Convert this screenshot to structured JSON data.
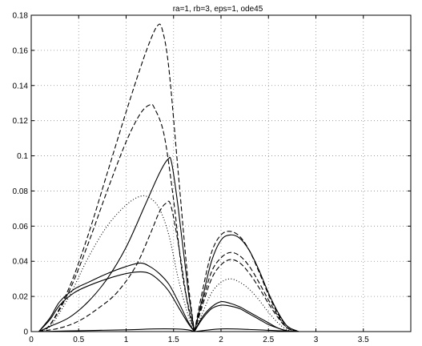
{
  "chart_data": {
    "type": "line",
    "title": "ra=1, rb=3, eps=1, ode45",
    "xlabel": "",
    "ylabel": "",
    "xlim": [
      0,
      4
    ],
    "ylim": [
      0,
      0.18
    ],
    "xticks": [
      0,
      0.5,
      1,
      1.5,
      2,
      2.5,
      3,
      3.5
    ],
    "xtick_labels": [
      "0",
      "0.5",
      "1",
      "1.5",
      "2",
      "2.5",
      "3",
      "3.5"
    ],
    "yticks": [
      0,
      0.02,
      0.04,
      0.06,
      0.08,
      0.1,
      0.12,
      0.14,
      0.16,
      0.18
    ],
    "ytick_labels": [
      "0",
      "0.02",
      "0.04",
      "0.06",
      "0.08",
      "0.1",
      "0.12",
      "0.14",
      "0.16",
      "0.18"
    ],
    "grid": true,
    "line_color": "#000000",
    "grid_color": "#8c8c8c",
    "series": [
      {
        "style": "dashed",
        "x": [
          0.08,
          0.2,
          0.4,
          0.6,
          0.8,
          1.0,
          1.15,
          1.25,
          1.33,
          1.38,
          1.45,
          1.55,
          1.65,
          1.72
        ],
        "y": [
          0,
          0.004,
          0.025,
          0.055,
          0.09,
          0.125,
          0.15,
          0.165,
          0.174,
          0.172,
          0.15,
          0.09,
          0.03,
          0
        ]
      },
      {
        "style": "dashed",
        "x": [
          0.08,
          0.2,
          0.4,
          0.6,
          0.8,
          1.0,
          1.15,
          1.25,
          1.3,
          1.4,
          1.5,
          1.6,
          1.72
        ],
        "y": [
          0,
          0.004,
          0.023,
          0.05,
          0.08,
          0.108,
          0.124,
          0.129,
          0.127,
          0.112,
          0.075,
          0.03,
          0
        ]
      },
      {
        "style": "dotted",
        "x": [
          0.08,
          0.2,
          0.4,
          0.6,
          0.8,
          1.0,
          1.15,
          1.25,
          1.35,
          1.45,
          1.55,
          1.65,
          1.72
        ],
        "y": [
          0,
          0.003,
          0.02,
          0.042,
          0.06,
          0.072,
          0.077,
          0.076,
          0.07,
          0.055,
          0.03,
          0.01,
          0
        ]
      },
      {
        "style": "dashed",
        "x": [
          0.08,
          0.3,
          0.5,
          0.7,
          0.9,
          1.1,
          1.25,
          1.35,
          1.42,
          1.47,
          1.55,
          1.65,
          1.72
        ],
        "y": [
          0,
          0.002,
          0.006,
          0.013,
          0.022,
          0.037,
          0.055,
          0.068,
          0.073,
          0.072,
          0.05,
          0.015,
          0
        ]
      },
      {
        "style": "solid",
        "x": [
          0.08,
          0.2,
          0.4,
          0.6,
          0.8,
          1.0,
          1.2,
          1.35,
          1.44,
          1.48,
          1.55,
          1.65,
          1.72
        ],
        "y": [
          0,
          0.003,
          0.008,
          0.017,
          0.03,
          0.048,
          0.072,
          0.09,
          0.098,
          0.096,
          0.07,
          0.025,
          0
        ]
      },
      {
        "style": "solid",
        "x": [
          0.08,
          0.2,
          0.3,
          0.45,
          0.6,
          0.8,
          1.0,
          1.15,
          1.25,
          1.35,
          1.45,
          1.55,
          1.65,
          1.72
        ],
        "y": [
          0,
          0.008,
          0.017,
          0.024,
          0.028,
          0.033,
          0.037,
          0.039,
          0.037,
          0.033,
          0.027,
          0.017,
          0.006,
          0
        ]
      },
      {
        "style": "solid",
        "x": [
          0.08,
          0.2,
          0.3,
          0.45,
          0.6,
          0.8,
          1.0,
          1.15,
          1.25,
          1.35,
          1.45,
          1.55,
          1.65,
          1.72
        ],
        "y": [
          0,
          0.007,
          0.015,
          0.022,
          0.026,
          0.03,
          0.033,
          0.034,
          0.033,
          0.029,
          0.023,
          0.014,
          0.005,
          0
        ]
      },
      {
        "style": "solid",
        "x": [
          0.08,
          0.5,
          1.0,
          1.3,
          1.5,
          1.65,
          1.72
        ],
        "y": [
          0,
          0.0005,
          0.001,
          0.0015,
          0.0015,
          0.001,
          0
        ]
      },
      {
        "style": "dashed",
        "x": [
          1.72,
          1.8,
          1.9,
          2.0,
          2.1,
          2.2,
          2.3,
          2.4,
          2.5,
          2.6,
          2.7,
          2.82
        ],
        "y": [
          0,
          0.022,
          0.045,
          0.055,
          0.057,
          0.054,
          0.046,
          0.034,
          0.021,
          0.01,
          0.003,
          0
        ]
      },
      {
        "style": "solid",
        "x": [
          1.72,
          1.8,
          1.9,
          2.0,
          2.1,
          2.2,
          2.3,
          2.4,
          2.5,
          2.6,
          2.7,
          2.82
        ],
        "y": [
          0,
          0.018,
          0.04,
          0.052,
          0.055,
          0.053,
          0.046,
          0.035,
          0.022,
          0.011,
          0.003,
          0
        ]
      },
      {
        "style": "dashed",
        "x": [
          1.72,
          1.8,
          1.9,
          2.0,
          2.1,
          2.2,
          2.3,
          2.4,
          2.5,
          2.6,
          2.7,
          2.82
        ],
        "y": [
          0,
          0.016,
          0.034,
          0.042,
          0.045,
          0.043,
          0.037,
          0.028,
          0.018,
          0.009,
          0.002,
          0
        ]
      },
      {
        "style": "dashed",
        "x": [
          1.72,
          1.8,
          1.9,
          2.0,
          2.1,
          2.2,
          2.3,
          2.4,
          2.5,
          2.6,
          2.7,
          2.82
        ],
        "y": [
          0,
          0.014,
          0.03,
          0.038,
          0.041,
          0.039,
          0.033,
          0.025,
          0.016,
          0.008,
          0.002,
          0
        ]
      },
      {
        "style": "dotted",
        "x": [
          1.72,
          1.8,
          1.9,
          2.0,
          2.1,
          2.2,
          2.3,
          2.4,
          2.5,
          2.6,
          2.7,
          2.82
        ],
        "y": [
          0,
          0.01,
          0.022,
          0.028,
          0.03,
          0.028,
          0.024,
          0.018,
          0.011,
          0.005,
          0.001,
          0
        ]
      },
      {
        "style": "solid",
        "x": [
          1.72,
          1.8,
          1.9,
          2.0,
          2.1,
          2.2,
          2.3,
          2.4,
          2.5,
          2.6,
          2.7,
          2.82
        ],
        "y": [
          0,
          0.008,
          0.014,
          0.017,
          0.016,
          0.014,
          0.011,
          0.008,
          0.005,
          0.002,
          0.0005,
          0
        ]
      },
      {
        "style": "solid",
        "x": [
          1.72,
          1.8,
          1.9,
          2.0,
          2.1,
          2.2,
          2.3,
          2.4,
          2.5,
          2.6,
          2.7,
          2.82
        ],
        "y": [
          0,
          0.007,
          0.013,
          0.015,
          0.0145,
          0.013,
          0.01,
          0.007,
          0.004,
          0.002,
          0.0004,
          0
        ]
      },
      {
        "style": "solid",
        "x": [
          1.72,
          2.0,
          2.3,
          2.6,
          2.82
        ],
        "y": [
          0,
          0.0015,
          0.0012,
          0.0005,
          0
        ]
      },
      {
        "style": "solid",
        "x": [
          2.82,
          3.6
        ],
        "y": [
          0,
          0
        ]
      }
    ]
  }
}
